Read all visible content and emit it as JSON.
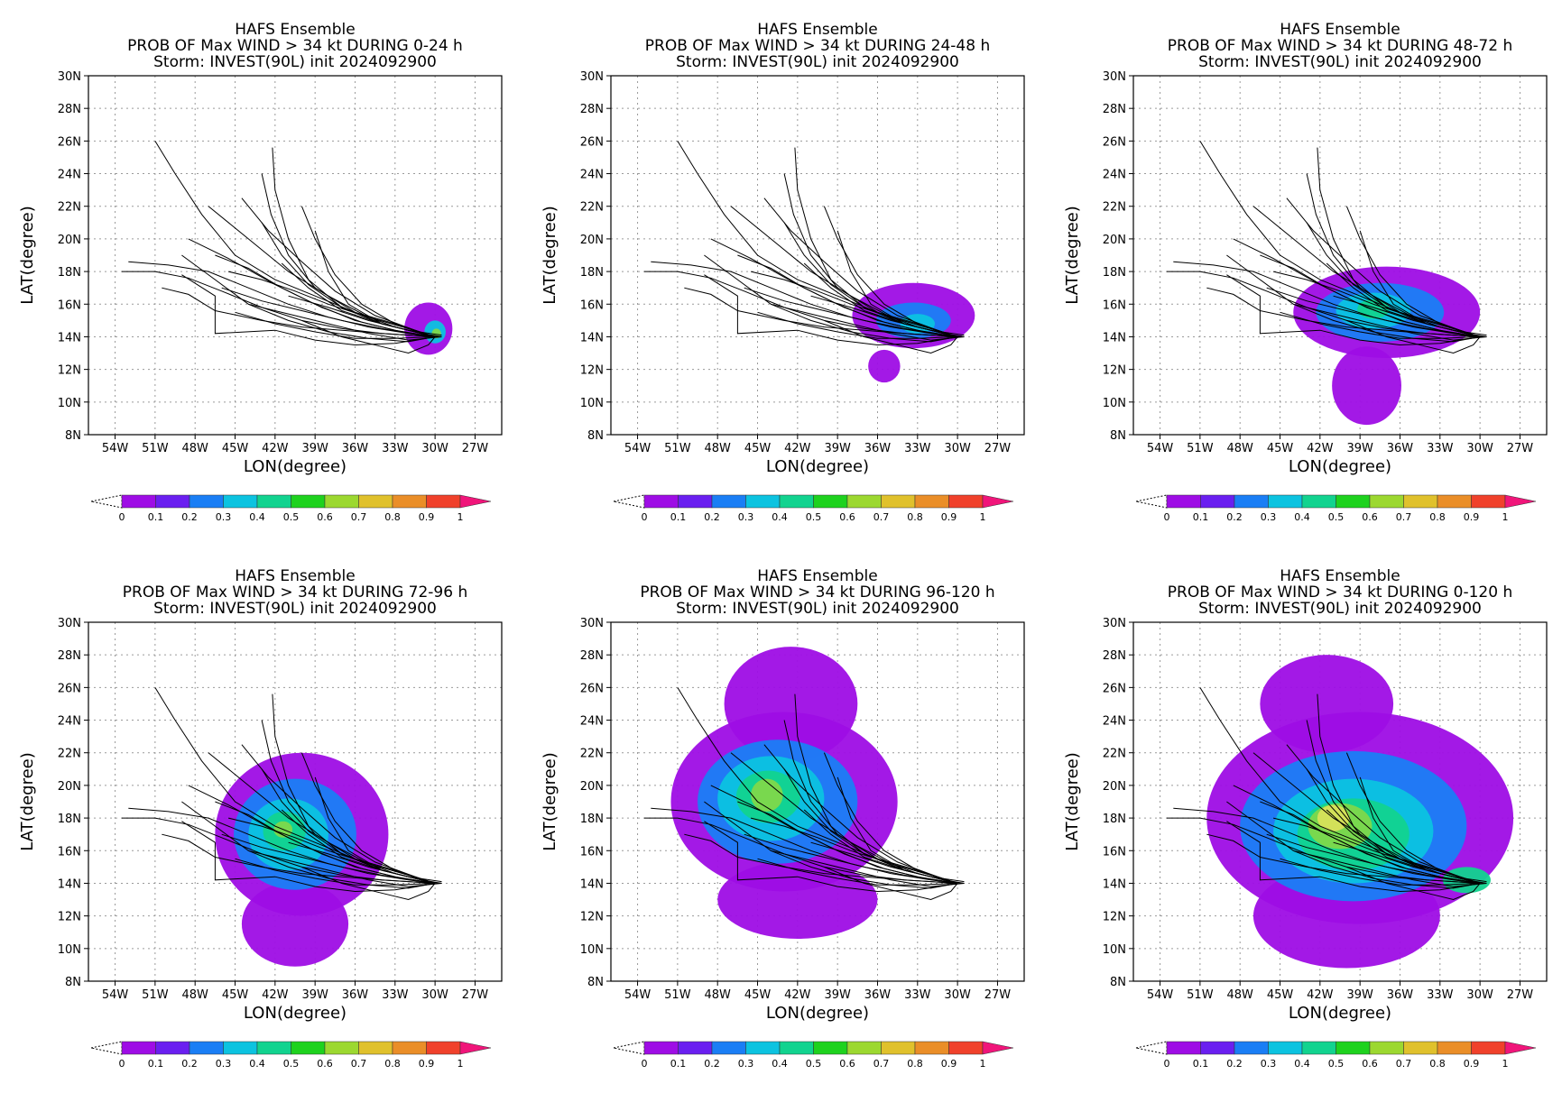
{
  "figure": {
    "colorbar": {
      "labels": [
        "0",
        "0.1",
        "0.2",
        "0.3",
        "0.4",
        "0.5",
        "0.6",
        "0.7",
        "0.8",
        "0.9",
        "1"
      ],
      "colors": [
        "#9e0de5",
        "#6a1ff0",
        "#1a7ef5",
        "#0cc3e0",
        "#12d38f",
        "#1ed21e",
        "#9cd830",
        "#e0c12c",
        "#ea8e28",
        "#f0412b"
      ],
      "over_color": "#f0157a"
    },
    "track_color": "#000000",
    "prob_colors": {
      "p1": "#9e0de5",
      "p2": "#1a7ef5",
      "p3": "#0cc3e0",
      "p4": "#12d38f",
      "p5": "#7fd84a",
      "p6": "#d8e25a"
    }
  },
  "chart_data": [
    {
      "type": "heatmap",
      "title_line1": "HAFS Ensemble",
      "title_line2": "PROB OF Max WIND > 34 kt DURING  0-24 h",
      "title_line3": "Storm: INVEST(90L) init 2024092900",
      "xlabel": "LON(degree)",
      "ylabel": "LAT(degree)",
      "xlim": [
        -56,
        -25
      ],
      "ylim": [
        8,
        30
      ],
      "xticks": [
        "54W",
        "51W",
        "48W",
        "45W",
        "42W",
        "39W",
        "36W",
        "33W",
        "30W",
        "27W"
      ],
      "yticks": [
        "8N",
        "10N",
        "12N",
        "14N",
        "16N",
        "18N",
        "20N",
        "22N",
        "24N",
        "26N",
        "28N",
        "30N"
      ],
      "grid": true,
      "prob_regions": [
        {
          "level": 0.05,
          "center": [
            -30.5,
            14.5
          ],
          "radius": [
            1.8,
            1.6
          ]
        },
        {
          "level": 0.25,
          "center": [
            -30.0,
            14.3
          ],
          "radius": [
            0.8,
            0.7
          ]
        },
        {
          "level": 0.4,
          "center": [
            -29.9,
            14.2
          ],
          "radius": [
            0.35,
            0.3
          ]
        }
      ]
    },
    {
      "type": "heatmap",
      "title_line1": "HAFS Ensemble",
      "title_line2": "PROB OF Max WIND > 34 kt DURING 24-48 h",
      "title_line3": "Storm: INVEST(90L) init 2024092900",
      "xlabel": "LON(degree)",
      "ylabel": "LAT(degree)",
      "xlim": [
        -56,
        -25
      ],
      "ylim": [
        8,
        30
      ],
      "xticks": [
        "54W",
        "51W",
        "48W",
        "45W",
        "42W",
        "39W",
        "36W",
        "33W",
        "30W",
        "27W"
      ],
      "yticks": [
        "8N",
        "10N",
        "12N",
        "14N",
        "16N",
        "18N",
        "20N",
        "22N",
        "24N",
        "26N",
        "28N",
        "30N"
      ],
      "grid": true,
      "prob_regions": [
        {
          "level": 0.05,
          "center": [
            -33.3,
            15.3
          ],
          "radius": [
            4.6,
            2.0
          ]
        },
        {
          "level": 0.05,
          "center": [
            -35.5,
            12.2
          ],
          "radius": [
            1.2,
            1.0
          ]
        },
        {
          "level": 0.15,
          "center": [
            -33.3,
            15.0
          ],
          "radius": [
            2.8,
            1.1
          ]
        },
        {
          "level": 0.25,
          "center": [
            -33.0,
            14.8
          ],
          "radius": [
            1.3,
            0.6
          ]
        }
      ]
    },
    {
      "type": "heatmap",
      "title_line1": "HAFS Ensemble",
      "title_line2": "PROB OF Max WIND > 34 kt DURING 48-72 h",
      "title_line3": "Storm: INVEST(90L) init 2024092900",
      "xlabel": "LON(degree)",
      "ylabel": "LAT(degree)",
      "xlim": [
        -56,
        -25
      ],
      "ylim": [
        8,
        30
      ],
      "xticks": [
        "54W",
        "51W",
        "48W",
        "45W",
        "42W",
        "39W",
        "36W",
        "33W",
        "30W",
        "27W"
      ],
      "yticks": [
        "8N",
        "10N",
        "12N",
        "14N",
        "16N",
        "18N",
        "20N",
        "22N",
        "24N",
        "26N",
        "28N",
        "30N"
      ],
      "grid": true,
      "prob_regions": [
        {
          "level": 0.05,
          "center": [
            -37.0,
            15.5
          ],
          "radius": [
            7.0,
            2.8
          ]
        },
        {
          "level": 0.05,
          "center": [
            -38.5,
            11.0
          ],
          "radius": [
            2.6,
            2.4
          ]
        },
        {
          "level": 0.15,
          "center": [
            -37.5,
            15.5
          ],
          "radius": [
            4.8,
            1.8
          ]
        },
        {
          "level": 0.25,
          "center": [
            -38.0,
            15.6
          ],
          "radius": [
            2.8,
            1.1
          ]
        },
        {
          "level": 0.35,
          "center": [
            -38.0,
            15.7
          ],
          "radius": [
            1.2,
            0.6
          ]
        }
      ]
    },
    {
      "type": "heatmap",
      "title_line1": "HAFS Ensemble",
      "title_line2": "PROB OF Max WIND > 34 kt DURING 72-96 h",
      "title_line3": "Storm: INVEST(90L) init 2024092900",
      "xlabel": "LON(degree)",
      "ylabel": "LAT(degree)",
      "xlim": [
        -56,
        -25
      ],
      "ylim": [
        8,
        30
      ],
      "xticks": [
        "54W",
        "51W",
        "48W",
        "45W",
        "42W",
        "39W",
        "36W",
        "33W",
        "30W",
        "27W"
      ],
      "yticks": [
        "8N",
        "10N",
        "12N",
        "14N",
        "16N",
        "18N",
        "20N",
        "22N",
        "24N",
        "26N",
        "28N",
        "30N"
      ],
      "grid": true,
      "prob_regions": [
        {
          "level": 0.05,
          "center": [
            -40.0,
            17.0
          ],
          "radius": [
            6.5,
            5.0
          ]
        },
        {
          "level": 0.05,
          "center": [
            -40.5,
            11.5
          ],
          "radius": [
            4.0,
            2.6
          ]
        },
        {
          "level": 0.15,
          "center": [
            -40.5,
            17.0
          ],
          "radius": [
            4.6,
            3.4
          ]
        },
        {
          "level": 0.25,
          "center": [
            -41.0,
            17.0
          ],
          "radius": [
            3.0,
            2.2
          ]
        },
        {
          "level": 0.35,
          "center": [
            -41.3,
            17.2
          ],
          "radius": [
            1.6,
            1.2
          ]
        },
        {
          "level": 0.45,
          "center": [
            -41.4,
            17.3
          ],
          "radius": [
            0.7,
            0.5
          ]
        }
      ]
    },
    {
      "type": "heatmap",
      "title_line1": "HAFS Ensemble",
      "title_line2": "PROB OF Max WIND > 34 kt DURING 96-120 h",
      "title_line3": "Storm: INVEST(90L) init 2024092900",
      "xlabel": "LON(degree)",
      "ylabel": "LAT(degree)",
      "xlim": [
        -56,
        -25
      ],
      "ylim": [
        8,
        30
      ],
      "xticks": [
        "54W",
        "51W",
        "48W",
        "45W",
        "42W",
        "39W",
        "36W",
        "33W",
        "30W",
        "27W"
      ],
      "yticks": [
        "8N",
        "10N",
        "12N",
        "14N",
        "16N",
        "18N",
        "20N",
        "22N",
        "24N",
        "26N",
        "28N",
        "30N"
      ],
      "grid": true,
      "prob_regions": [
        {
          "level": 0.05,
          "center": [
            -43.0,
            19.0
          ],
          "radius": [
            8.5,
            5.5
          ]
        },
        {
          "level": 0.05,
          "center": [
            -42.5,
            25.0
          ],
          "radius": [
            5.0,
            3.5
          ]
        },
        {
          "level": 0.05,
          "center": [
            -42.0,
            13.0
          ],
          "radius": [
            6.0,
            2.4
          ]
        },
        {
          "level": 0.15,
          "center": [
            -43.5,
            19.0
          ],
          "radius": [
            6.0,
            3.8
          ]
        },
        {
          "level": 0.25,
          "center": [
            -44.0,
            19.2
          ],
          "radius": [
            4.0,
            2.6
          ]
        },
        {
          "level": 0.35,
          "center": [
            -44.2,
            19.3
          ],
          "radius": [
            2.4,
            1.6
          ]
        },
        {
          "level": 0.45,
          "center": [
            -44.3,
            19.4
          ],
          "radius": [
            1.2,
            1.0
          ]
        }
      ]
    },
    {
      "type": "heatmap",
      "title_line1": "HAFS Ensemble",
      "title_line2": "PROB OF Max WIND > 34 kt DURING 0-120 h",
      "title_line3": "Storm: INVEST(90L) init 2024092900",
      "xlabel": "LON(degree)",
      "ylabel": "LAT(degree)",
      "xlim": [
        -56,
        -25
      ],
      "ylim": [
        8,
        30
      ],
      "xticks": [
        "54W",
        "51W",
        "48W",
        "45W",
        "42W",
        "39W",
        "36W",
        "33W",
        "30W",
        "27W"
      ],
      "yticks": [
        "8N",
        "10N",
        "12N",
        "14N",
        "16N",
        "18N",
        "20N",
        "22N",
        "24N",
        "26N",
        "28N",
        "30N"
      ],
      "grid": true,
      "prob_regions": [
        {
          "level": 0.05,
          "center": [
            -39.0,
            18.0
          ],
          "radius": [
            11.5,
            6.5
          ]
        },
        {
          "level": 0.05,
          "center": [
            -40.0,
            12.0
          ],
          "radius": [
            7.0,
            3.2
          ]
        },
        {
          "level": 0.05,
          "center": [
            -41.5,
            25.0
          ],
          "radius": [
            5.0,
            3.0
          ]
        },
        {
          "level": 0.15,
          "center": [
            -39.5,
            17.5
          ],
          "radius": [
            8.5,
            4.6
          ]
        },
        {
          "level": 0.25,
          "center": [
            -39.5,
            17.2
          ],
          "radius": [
            6.0,
            3.2
          ]
        },
        {
          "level": 0.35,
          "center": [
            -39.5,
            17.0
          ],
          "radius": [
            4.2,
            2.2
          ]
        },
        {
          "level": 0.45,
          "center": [
            -40.5,
            17.5
          ],
          "radius": [
            2.4,
            1.4
          ]
        },
        {
          "level": 0.55,
          "center": [
            -41.0,
            18.0
          ],
          "radius": [
            1.2,
            0.8
          ]
        },
        {
          "level": 0.35,
          "center": [
            -31.0,
            14.2
          ],
          "radius": [
            1.8,
            0.8
          ]
        }
      ]
    }
  ],
  "tracks": [
    [
      [
        -51.0,
        26.0
      ],
      [
        -49.5,
        24.0
      ],
      [
        -47.5,
        21.5
      ],
      [
        -45.0,
        19.0
      ],
      [
        -42.0,
        17.5
      ],
      [
        -39.0,
        16.5
      ],
      [
        -36.0,
        15.5
      ],
      [
        -33.0,
        14.8
      ],
      [
        -30.0,
        14.0
      ]
    ],
    [
      [
        -53.0,
        18.6
      ],
      [
        -50.0,
        18.4
      ],
      [
        -47.0,
        18.0
      ],
      [
        -44.0,
        17.0
      ],
      [
        -41.0,
        16.0
      ],
      [
        -38.0,
        15.2
      ],
      [
        -35.0,
        14.6
      ],
      [
        -32.0,
        14.2
      ],
      [
        -30.0,
        14.0
      ]
    ],
    [
      [
        -53.5,
        18.0
      ],
      [
        -51.0,
        18.0
      ],
      [
        -48.5,
        17.6
      ],
      [
        -46.0,
        16.8
      ],
      [
        -43.0,
        15.8
      ],
      [
        -40.0,
        15.0
      ],
      [
        -37.0,
        14.5
      ],
      [
        -34.0,
        14.2
      ],
      [
        -30.0,
        14.0
      ]
    ],
    [
      [
        -42.2,
        25.6
      ],
      [
        -42.0,
        23.0
      ],
      [
        -41.0,
        20.0
      ],
      [
        -39.5,
        17.5
      ],
      [
        -37.0,
        15.8
      ],
      [
        -34.0,
        14.8
      ],
      [
        -31.5,
        14.3
      ],
      [
        -30.0,
        14.0
      ]
    ],
    [
      [
        -43.0,
        24.0
      ],
      [
        -42.3,
        21.5
      ],
      [
        -41.0,
        19.0
      ],
      [
        -39.0,
        17.0
      ],
      [
        -36.0,
        15.5
      ],
      [
        -33.0,
        14.6
      ],
      [
        -30.0,
        14.0
      ]
    ],
    [
      [
        -47.0,
        22.0
      ],
      [
        -44.0,
        20.0
      ],
      [
        -41.0,
        18.0
      ],
      [
        -38.0,
        16.5
      ],
      [
        -35.0,
        15.2
      ],
      [
        -32.0,
        14.5
      ],
      [
        -30.0,
        14.0
      ]
    ],
    [
      [
        -48.5,
        20.0
      ],
      [
        -45.5,
        18.8
      ],
      [
        -42.0,
        17.2
      ],
      [
        -39.0,
        16.0
      ],
      [
        -36.0,
        15.0
      ],
      [
        -33.0,
        14.4
      ],
      [
        -30.0,
        14.0
      ]
    ],
    [
      [
        -49.0,
        17.8
      ],
      [
        -46.5,
        16.5
      ],
      [
        -46.5,
        14.2
      ],
      [
        -42.0,
        14.4
      ],
      [
        -39.0,
        13.8
      ],
      [
        -36.0,
        13.5
      ],
      [
        -33.0,
        13.6
      ],
      [
        -30.0,
        14.0
      ]
    ],
    [
      [
        -50.5,
        17.0
      ],
      [
        -48.5,
        16.6
      ],
      [
        -46.5,
        15.6
      ],
      [
        -43.0,
        15.0
      ],
      [
        -40.0,
        14.6
      ],
      [
        -37.0,
        14.4
      ],
      [
        -34.0,
        14.2
      ],
      [
        -30.0,
        14.0
      ]
    ],
    [
      [
        -44.5,
        22.5
      ],
      [
        -42.5,
        20.5
      ],
      [
        -40.0,
        18.6
      ],
      [
        -37.5,
        16.8
      ],
      [
        -34.5,
        15.3
      ],
      [
        -31.5,
        14.4
      ],
      [
        -30.0,
        14.0
      ]
    ],
    [
      [
        -40.0,
        22.0
      ],
      [
        -39.0,
        20.0
      ],
      [
        -37.5,
        17.8
      ],
      [
        -35.5,
        16.0
      ],
      [
        -33.0,
        14.8
      ],
      [
        -30.0,
        14.0
      ]
    ],
    [
      [
        -45.5,
        18.0
      ],
      [
        -43.0,
        17.5
      ],
      [
        -40.5,
        16.8
      ],
      [
        -38.0,
        16.0
      ],
      [
        -35.0,
        15.2
      ],
      [
        -32.0,
        14.5
      ],
      [
        -30.0,
        14.0
      ]
    ],
    [
      [
        -46.0,
        17.0
      ],
      [
        -43.0,
        16.2
      ],
      [
        -40.0,
        15.6
      ],
      [
        -37.0,
        15.0
      ],
      [
        -34.0,
        14.5
      ],
      [
        -31.0,
        14.1
      ],
      [
        -29.5,
        14.0
      ]
    ],
    [
      [
        -44.0,
        16.0
      ],
      [
        -41.0,
        15.4
      ],
      [
        -38.0,
        14.8
      ],
      [
        -35.0,
        14.2
      ],
      [
        -32.0,
        13.8
      ],
      [
        -29.5,
        14.0
      ]
    ],
    [
      [
        -41.5,
        18.5
      ],
      [
        -39.5,
        17.0
      ],
      [
        -37.0,
        15.6
      ],
      [
        -34.0,
        14.8
      ],
      [
        -31.0,
        14.2
      ],
      [
        -29.5,
        14.0
      ]
    ],
    [
      [
        -46.5,
        19.0
      ],
      [
        -44.0,
        18.2
      ],
      [
        -41.5,
        17.0
      ],
      [
        -38.5,
        15.8
      ],
      [
        -35.5,
        14.9
      ],
      [
        -32.5,
        14.3
      ],
      [
        -30.0,
        14.0
      ]
    ],
    [
      [
        -41.0,
        16.5
      ],
      [
        -38.0,
        15.8
      ],
      [
        -35.0,
        15.0
      ],
      [
        -32.0,
        14.4
      ],
      [
        -29.5,
        14.1
      ]
    ],
    [
      [
        -39.0,
        20.5
      ],
      [
        -38.0,
        18.0
      ],
      [
        -36.5,
        16.0
      ],
      [
        -34.0,
        14.8
      ],
      [
        -31.0,
        14.2
      ],
      [
        -30.0,
        14.0
      ]
    ],
    [
      [
        -49.0,
        19.0
      ],
      [
        -46.5,
        17.5
      ],
      [
        -44.0,
        16.0
      ],
      [
        -41.0,
        15.0
      ],
      [
        -38.0,
        14.3
      ],
      [
        -35.0,
        13.9
      ],
      [
        -32.0,
        13.7
      ],
      [
        -30.0,
        14.0
      ]
    ],
    [
      [
        -43.0,
        21.0
      ],
      [
        -41.5,
        19.0
      ],
      [
        -39.5,
        17.2
      ],
      [
        -37.0,
        15.8
      ],
      [
        -34.0,
        14.8
      ],
      [
        -31.0,
        14.2
      ],
      [
        -30.0,
        14.0
      ]
    ],
    [
      [
        -40.0,
        15.0
      ],
      [
        -37.0,
        14.0
      ],
      [
        -34.0,
        13.4
      ],
      [
        -32.0,
        13.0
      ],
      [
        -30.5,
        13.5
      ],
      [
        -30.0,
        14.0
      ]
    ],
    [
      [
        -45.0,
        15.5
      ],
      [
        -42.0,
        14.8
      ],
      [
        -39.0,
        14.3
      ],
      [
        -36.0,
        13.9
      ],
      [
        -33.0,
        13.9
      ],
      [
        -30.0,
        14.0
      ]
    ]
  ]
}
